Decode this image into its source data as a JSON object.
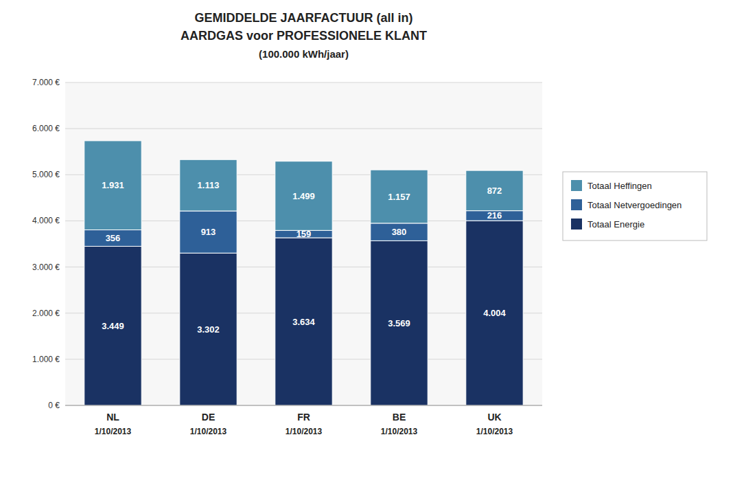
{
  "chart_data": {
    "type": "bar",
    "stacked": true,
    "title": [
      "GEMIDDELDE JAARFACTUUR (all in)",
      "AARDGAS voor PROFESSIONELE KLANT"
    ],
    "subtitle": "(100.000 kWh/jaar)",
    "categories": [
      [
        "NL",
        "1/10/2013"
      ],
      [
        "DE",
        "1/10/2013"
      ],
      [
        "FR",
        "1/10/2013"
      ],
      [
        "BE",
        "1/10/2013"
      ],
      [
        "UK",
        "1/10/2013"
      ]
    ],
    "series": [
      {
        "name": "Totaal Energie",
        "color": "#1a3263",
        "values": [
          3449,
          3302,
          3634,
          3569,
          4004
        ],
        "value_labels": [
          "3.449",
          "3.302",
          "3.634",
          "3.569",
          "4.004"
        ]
      },
      {
        "name": "Totaal Netvergoedingen",
        "color": "#2e6098",
        "values": [
          356,
          913,
          159,
          380,
          216
        ],
        "value_labels": [
          "356",
          "913",
          "159",
          "380",
          "216"
        ]
      },
      {
        "name": "Totaal Heffingen",
        "color": "#4d8fac",
        "values": [
          1931,
          1113,
          1499,
          1157,
          872
        ],
        "value_labels": [
          "1.931",
          "1.113",
          "1.499",
          "1.157",
          "872"
        ]
      }
    ],
    "ylim": [
      0,
      7000
    ],
    "yticks": [
      {
        "value": 0,
        "label": "0 €"
      },
      {
        "value": 1000,
        "label": "1.000 €"
      },
      {
        "value": 2000,
        "label": "2.000 €"
      },
      {
        "value": 3000,
        "label": "3.000 €"
      },
      {
        "value": 4000,
        "label": "4.000 €"
      },
      {
        "value": 5000,
        "label": "5.000 €"
      },
      {
        "value": 6000,
        "label": "6.000 €"
      },
      {
        "value": 7000,
        "label": "7.000 €"
      }
    ],
    "grid": true,
    "legend": "right",
    "data_labels": true
  }
}
